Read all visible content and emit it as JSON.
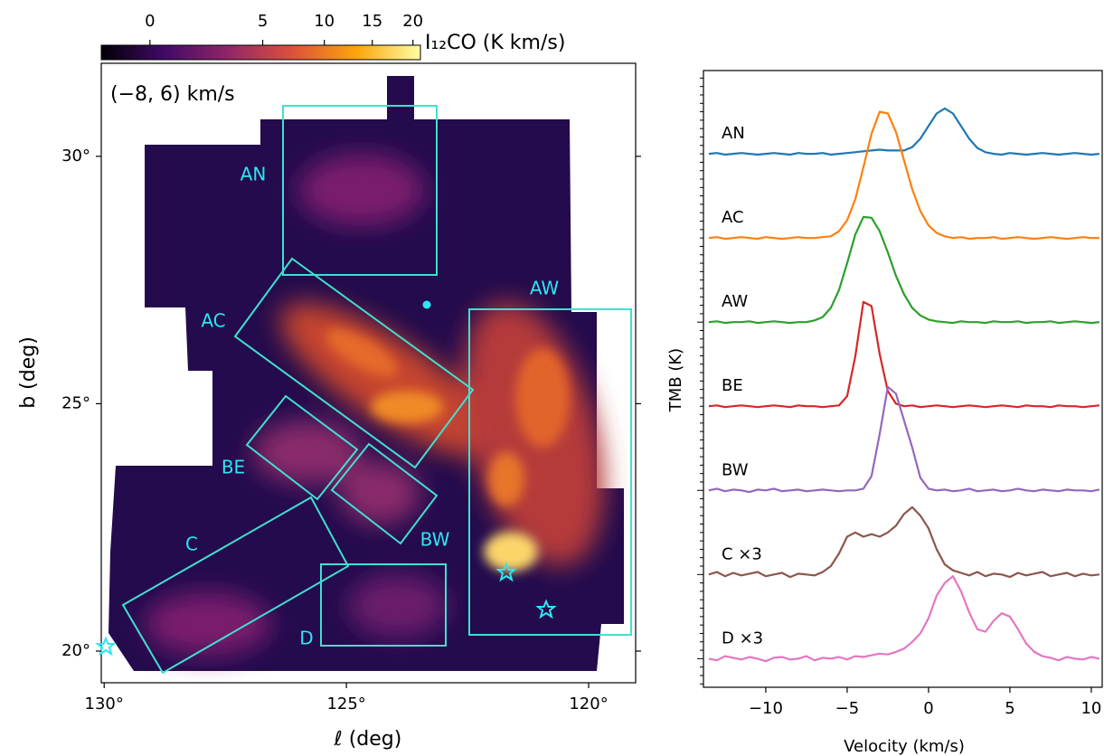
{
  "chart_data": [
    {
      "type": "image",
      "annotation": "(−8, 6) km/s",
      "xlabel": "ℓ (deg)",
      "ylabel": "b (deg)",
      "xlim": [
        130.06,
        119.03
      ],
      "ylim": [
        19.36,
        31.88
      ],
      "xticks": [
        {
          "value": 130,
          "label": "130°"
        },
        {
          "value": 125,
          "label": "125°"
        },
        {
          "value": 120,
          "label": "120°"
        }
      ],
      "yticks": [
        {
          "value": 20,
          "label": "20°"
        },
        {
          "value": 25,
          "label": "25°"
        },
        {
          "value": 30,
          "label": "30°"
        }
      ],
      "regions": [
        "AN",
        "AC",
        "AW",
        "BE",
        "BW",
        "C",
        "D"
      ],
      "region_color": "#40e0d0",
      "colorbar": {
        "label": "I₁₂CO (K km/s)",
        "lim": [
          -0.5,
          21
        ],
        "ticks": [
          0,
          5,
          10,
          15,
          20
        ],
        "scale": "sqrt",
        "colors": [
          "#000004",
          "#420a68",
          "#932667",
          "#dd513a",
          "#fca50a",
          "#fcffa4"
        ]
      }
    },
    {
      "type": "line",
      "xlabel": "Velocity (km/s)",
      "ylabel": "TMB (K)",
      "xlim": [
        -13.83,
        10.67
      ],
      "ylim": [
        -0.34,
        6.99
      ],
      "xticks": [
        {
          "value": -10,
          "label": "−10"
        },
        {
          "value": -5,
          "label": "−5"
        },
        0,
        5,
        10
      ],
      "x": [
        -13.5,
        -13,
        -12.5,
        -12,
        -11.5,
        -11,
        -10.5,
        -10,
        -9.5,
        -9,
        -8.5,
        -8,
        -7.5,
        -7,
        -6.5,
        -6,
        -5.5,
        -5,
        -4.5,
        -4,
        -3.5,
        -3,
        -2.5,
        -2,
        -1.5,
        -1,
        -0.5,
        0,
        0.5,
        1,
        1.5,
        2,
        2.5,
        3,
        3.5,
        4,
        4.5,
        5,
        5.5,
        6,
        6.5,
        7,
        7.5,
        8,
        8.5,
        9,
        9.5,
        10,
        10.5
      ],
      "series": [
        {
          "name": "AN",
          "color": "#1f77b4",
          "values": [
            6.0,
            6.01,
            5.99,
            6.0,
            6.01,
            6.0,
            5.99,
            6.0,
            6.01,
            6.0,
            5.99,
            6.01,
            6.0,
            6.0,
            6.01,
            5.99,
            6.0,
            6.01,
            6.02,
            6.03,
            6.04,
            6.05,
            6.04,
            6.04,
            6.04,
            6.08,
            6.18,
            6.33,
            6.48,
            6.54,
            6.48,
            6.33,
            6.18,
            6.07,
            6.02,
            6.0,
            5.99,
            6.01,
            6.0,
            5.99,
            6.0,
            6.01,
            6.0,
            5.99,
            6.0,
            6.01,
            6.0,
            5.99,
            6.0
          ]
        },
        {
          "name": "AC",
          "color": "#ff7f0e",
          "values": [
            5.0,
            5.01,
            4.99,
            5.0,
            5.01,
            5.0,
            4.99,
            5.01,
            5.0,
            4.99,
            5.0,
            5.01,
            5.0,
            5.0,
            5.01,
            5.02,
            5.08,
            5.21,
            5.46,
            5.84,
            6.24,
            6.5,
            6.48,
            6.26,
            5.92,
            5.58,
            5.32,
            5.15,
            5.06,
            5.02,
            5.0,
            5.01,
            4.99,
            5.0,
            5.0,
            5.01,
            4.99,
            5.0,
            5.01,
            5.0,
            4.99,
            5.0,
            5.01,
            5.0,
            4.99,
            5.0,
            5.01,
            5.0,
            5.0
          ]
        },
        {
          "name": "AW",
          "color": "#2ca02c",
          "values": [
            4.0,
            4.01,
            3.99,
            4.0,
            4.0,
            4.01,
            3.99,
            4.0,
            4.01,
            4.0,
            3.99,
            4.0,
            4.0,
            4.02,
            4.06,
            4.17,
            4.38,
            4.7,
            5.04,
            5.25,
            5.24,
            5.08,
            4.83,
            4.55,
            4.33,
            4.17,
            4.08,
            4.03,
            4.01,
            4.0,
            3.99,
            4.01,
            4.0,
            4.0,
            3.99,
            4.01,
            4.0,
            4.0,
            4.01,
            3.99,
            4.0,
            4.0,
            4.01,
            3.99,
            4.0,
            4.01,
            4.0,
            3.99,
            4.0
          ]
        },
        {
          "name": "BE",
          "color": "#d62728",
          "values": [
            3.0,
            3.01,
            2.99,
            3.0,
            3.01,
            3.0,
            2.99,
            3.0,
            3.01,
            3.0,
            2.99,
            3.01,
            3.0,
            3.0,
            2.99,
            3.0,
            3.01,
            3.12,
            3.59,
            4.24,
            4.19,
            3.62,
            3.18,
            3.03,
            3.0,
            3.01,
            2.99,
            3.0,
            3.01,
            3.0,
            2.99,
            3.0,
            3.01,
            3.0,
            2.99,
            3.0,
            3.01,
            3.0,
            2.99,
            3.01,
            3.0,
            3.0,
            2.99,
            3.01,
            3.0,
            3.0,
            2.99,
            3.0,
            3.01
          ]
        },
        {
          "name": "BW",
          "color": "#9467bd",
          "values": [
            2.0,
            2.02,
            1.99,
            2.01,
            2.0,
            1.98,
            2.01,
            2.0,
            2.02,
            1.99,
            2.0,
            2.01,
            1.99,
            2.0,
            2.01,
            2.0,
            1.99,
            2.0,
            2.0,
            2.02,
            2.17,
            2.67,
            3.23,
            3.15,
            2.83,
            2.51,
            2.15,
            2.02,
            2.0,
            2.01,
            1.99,
            2.0,
            2.02,
            1.99,
            2.0,
            2.01,
            1.99,
            2.0,
            2.02,
            2.0,
            1.99,
            2.01,
            2.0,
            1.99,
            2.01,
            2.0,
            2.0,
            1.99,
            2.01
          ]
        },
        {
          "name": "C ×3",
          "color": "#8c564b",
          "values": [
            1.0,
            1.03,
            0.98,
            1.02,
            0.99,
            1.01,
            1.03,
            0.98,
            1.0,
            1.02,
            0.97,
            1.01,
            1.0,
            0.99,
            1.03,
            1.1,
            1.25,
            1.45,
            1.5,
            1.45,
            1.48,
            1.45,
            1.5,
            1.58,
            1.72,
            1.8,
            1.7,
            1.55,
            1.3,
            1.12,
            1.05,
            1.02,
            0.99,
            1.03,
            0.98,
            1.01,
            1.0,
            0.97,
            1.02,
            0.99,
            1.01,
            1.03,
            0.98,
            1.0,
            1.02,
            0.98,
            1.01,
            0.99,
            1.0
          ]
        },
        {
          "name": "D ×3",
          "color": "#e377c2",
          "values": [
            0.0,
            -0.02,
            0.03,
            0.01,
            -0.01,
            0.02,
            0.0,
            -0.03,
            0.01,
            0.02,
            -0.01,
            0.0,
            0.03,
            -0.02,
            0.01,
            0.0,
            0.02,
            -0.01,
            0.03,
            0.02,
            0.04,
            0.06,
            0.05,
            0.08,
            0.12,
            0.2,
            0.3,
            0.48,
            0.75,
            0.9,
            0.98,
            0.8,
            0.55,
            0.35,
            0.32,
            0.45,
            0.54,
            0.5,
            0.35,
            0.18,
            0.08,
            0.03,
            0.01,
            -0.02,
            0.02,
            0.0,
            -0.01,
            0.02,
            0.0
          ]
        }
      ]
    }
  ]
}
